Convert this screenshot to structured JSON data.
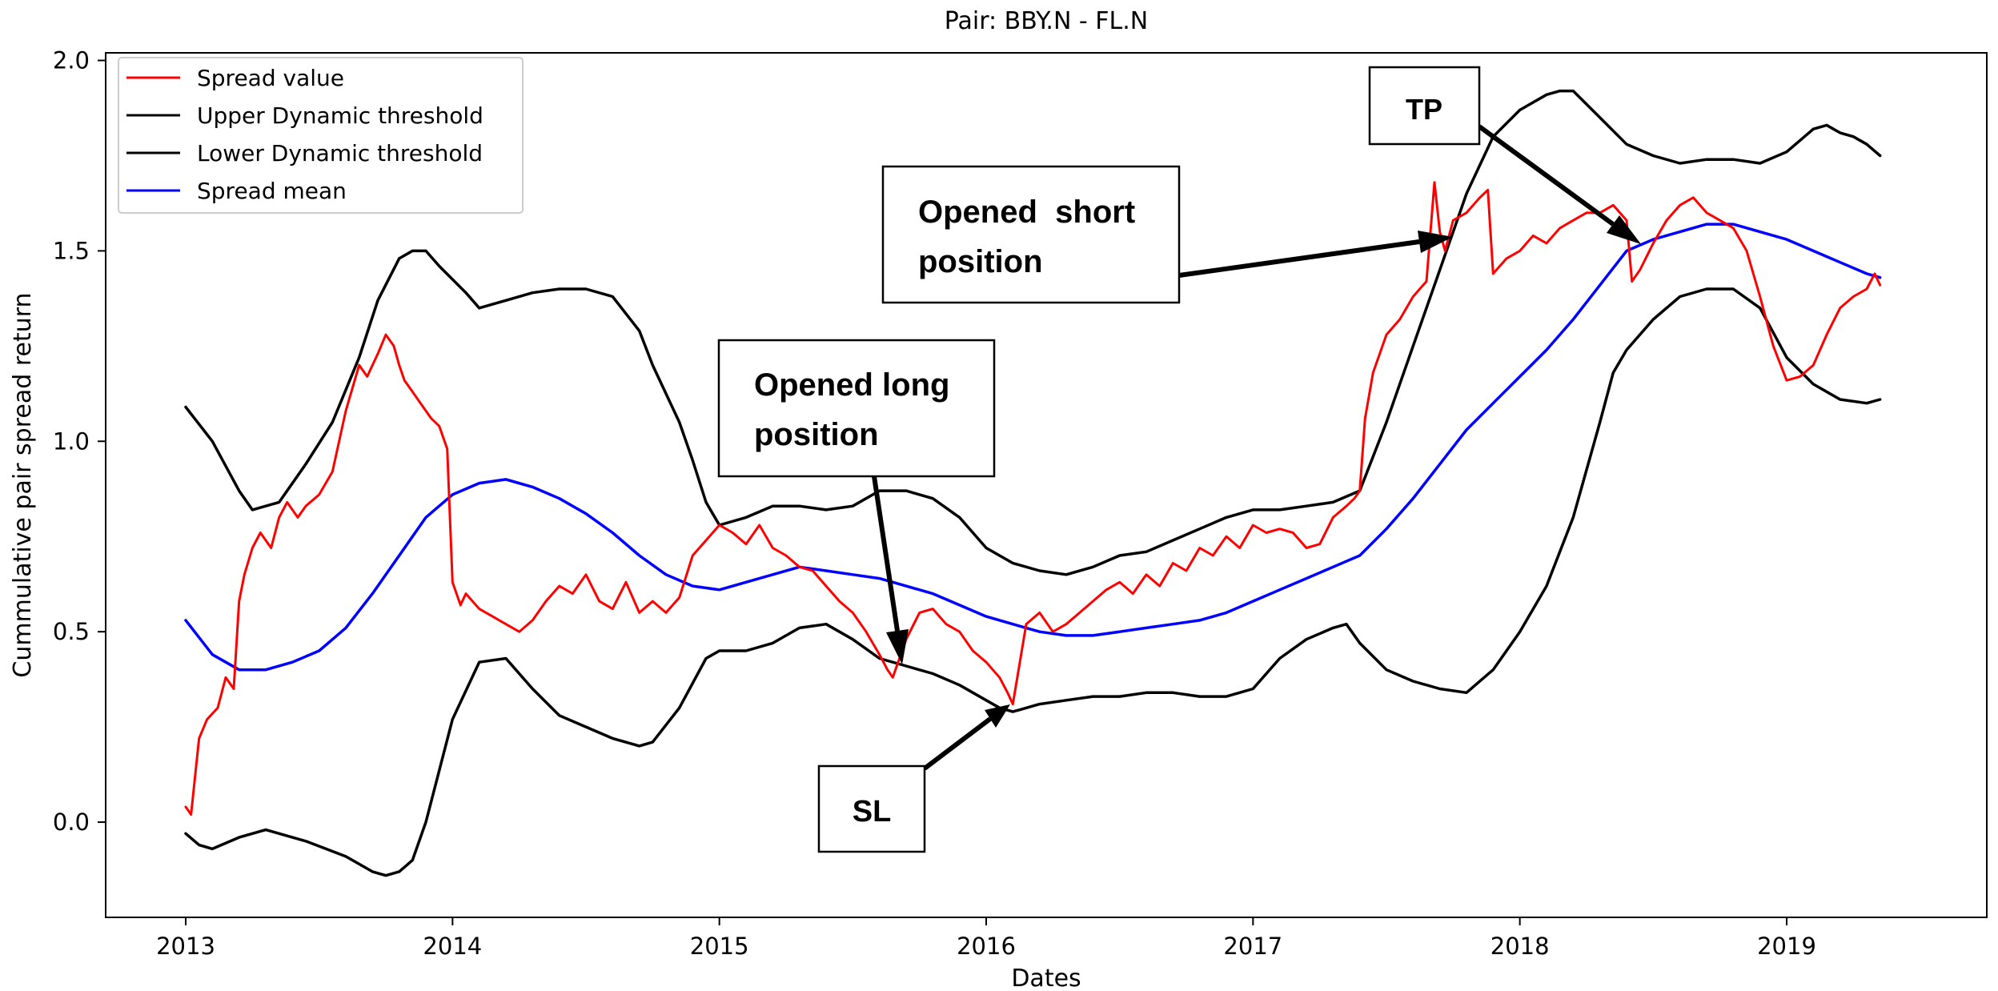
{
  "chart_data": {
    "type": "line",
    "title": "Pair: BBY.N - FL.N",
    "xlabel": "Dates",
    "ylabel": "Cummulative pair spread return",
    "xlim": [
      2012.7,
      2019.75
    ],
    "ylim": [
      -0.25,
      2.02
    ],
    "x_ticks": [
      2013,
      2014,
      2015,
      2016,
      2017,
      2018,
      2019
    ],
    "x_tick_labels": [
      "2013",
      "2014",
      "2015",
      "2016",
      "2017",
      "2018",
      "2019"
    ],
    "y_ticks": [
      0.0,
      0.5,
      1.0,
      1.5,
      2.0
    ],
    "y_tick_labels": [
      "0.0",
      "0.5",
      "1.0",
      "1.5",
      "2.0"
    ],
    "grid": false,
    "legend_position": "top-left",
    "series": [
      {
        "name": "Spread value",
        "color": "#ff0000",
        "x": [
          2013.0,
          2013.02,
          2013.05,
          2013.08,
          2013.12,
          2013.15,
          2013.18,
          2013.2,
          2013.22,
          2013.25,
          2013.28,
          2013.32,
          2013.35,
          2013.38,
          2013.42,
          2013.45,
          2013.5,
          2013.55,
          2013.6,
          2013.65,
          2013.68,
          2013.72,
          2013.75,
          2013.78,
          2013.8,
          2013.82,
          2013.85,
          2013.88,
          2013.92,
          2013.95,
          2013.98,
          2014.0,
          2014.03,
          2014.05,
          2014.1,
          2014.15,
          2014.2,
          2014.25,
          2014.3,
          2014.35,
          2014.4,
          2014.45,
          2014.5,
          2014.55,
          2014.6,
          2014.65,
          2014.7,
          2014.75,
          2014.8,
          2014.85,
          2014.9,
          2014.95,
          2015.0,
          2015.05,
          2015.1,
          2015.15,
          2015.2,
          2015.25,
          2015.3,
          2015.35,
          2015.4,
          2015.45,
          2015.5,
          2015.55,
          2015.6,
          2015.63,
          2015.65,
          2015.7,
          2015.75,
          2015.8,
          2015.85,
          2015.9,
          2015.95,
          2016.0,
          2016.05,
          2016.08,
          2016.1,
          2016.15,
          2016.2,
          2016.25,
          2016.3,
          2016.35,
          2016.4,
          2016.45,
          2016.5,
          2016.55,
          2016.6,
          2016.65,
          2016.7,
          2016.75,
          2016.8,
          2016.85,
          2016.9,
          2016.95,
          2017.0,
          2017.05,
          2017.1,
          2017.15,
          2017.2,
          2017.25,
          2017.3,
          2017.35,
          2017.38,
          2017.4,
          2017.42,
          2017.45,
          2017.5,
          2017.55,
          2017.6,
          2017.65,
          2017.68,
          2017.7,
          2017.72,
          2017.75,
          2017.8,
          2017.85,
          2017.88,
          2017.9,
          2017.95,
          2018.0,
          2018.05,
          2018.1,
          2018.15,
          2018.2,
          2018.25,
          2018.3,
          2018.35,
          2018.4,
          2018.42,
          2018.45,
          2018.5,
          2018.55,
          2018.6,
          2018.65,
          2018.7,
          2018.75,
          2018.8,
          2018.85,
          2018.9,
          2018.95,
          2019.0,
          2019.05,
          2019.1,
          2019.15,
          2019.2,
          2019.25,
          2019.3,
          2019.33,
          2019.35
        ],
        "y": [
          0.04,
          0.02,
          0.22,
          0.27,
          0.3,
          0.38,
          0.35,
          0.58,
          0.65,
          0.72,
          0.76,
          0.72,
          0.8,
          0.84,
          0.8,
          0.83,
          0.86,
          0.92,
          1.08,
          1.2,
          1.17,
          1.23,
          1.28,
          1.25,
          1.2,
          1.16,
          1.13,
          1.1,
          1.06,
          1.04,
          0.98,
          0.63,
          0.57,
          0.6,
          0.56,
          0.54,
          0.52,
          0.5,
          0.53,
          0.58,
          0.62,
          0.6,
          0.65,
          0.58,
          0.56,
          0.63,
          0.55,
          0.58,
          0.55,
          0.59,
          0.7,
          0.74,
          0.78,
          0.76,
          0.73,
          0.78,
          0.72,
          0.7,
          0.67,
          0.66,
          0.62,
          0.58,
          0.55,
          0.5,
          0.44,
          0.4,
          0.38,
          0.48,
          0.55,
          0.56,
          0.52,
          0.5,
          0.45,
          0.42,
          0.38,
          0.34,
          0.31,
          0.52,
          0.55,
          0.5,
          0.52,
          0.55,
          0.58,
          0.61,
          0.63,
          0.6,
          0.65,
          0.62,
          0.68,
          0.66,
          0.72,
          0.7,
          0.75,
          0.72,
          0.78,
          0.76,
          0.77,
          0.76,
          0.72,
          0.73,
          0.8,
          0.83,
          0.85,
          0.87,
          1.06,
          1.18,
          1.28,
          1.32,
          1.38,
          1.42,
          1.68,
          1.55,
          1.5,
          1.58,
          1.6,
          1.64,
          1.66,
          1.44,
          1.48,
          1.5,
          1.54,
          1.52,
          1.56,
          1.58,
          1.6,
          1.6,
          1.62,
          1.58,
          1.42,
          1.45,
          1.52,
          1.58,
          1.62,
          1.64,
          1.6,
          1.58,
          1.56,
          1.5,
          1.38,
          1.25,
          1.16,
          1.17,
          1.2,
          1.28,
          1.35,
          1.38,
          1.4,
          1.44,
          1.41
        ]
      },
      {
        "name": "Upper Dynamic threshold",
        "color": "#000000",
        "x": [
          2013.0,
          2013.1,
          2013.2,
          2013.25,
          2013.35,
          2013.45,
          2013.55,
          2013.65,
          2013.72,
          2013.8,
          2013.85,
          2013.9,
          2013.95,
          2014.05,
          2014.1,
          2014.2,
          2014.3,
          2014.4,
          2014.5,
          2014.6,
          2014.7,
          2014.75,
          2014.85,
          2014.9,
          2014.95,
          2015.0,
          2015.1,
          2015.2,
          2015.3,
          2015.4,
          2015.5,
          2015.6,
          2015.7,
          2015.8,
          2015.9,
          2016.0,
          2016.1,
          2016.2,
          2016.3,
          2016.4,
          2016.5,
          2016.6,
          2016.7,
          2016.8,
          2016.9,
          2017.0,
          2017.1,
          2017.2,
          2017.3,
          2017.4,
          2017.5,
          2017.6,
          2017.7,
          2017.8,
          2017.9,
          2018.0,
          2018.1,
          2018.15,
          2018.2,
          2018.3,
          2018.4,
          2018.5,
          2018.6,
          2018.7,
          2018.8,
          2018.9,
          2019.0,
          2019.05,
          2019.1,
          2019.15,
          2019.2,
          2019.25,
          2019.3,
          2019.35
        ],
        "y": [
          1.09,
          1.0,
          0.87,
          0.82,
          0.84,
          0.94,
          1.05,
          1.22,
          1.37,
          1.48,
          1.5,
          1.5,
          1.46,
          1.39,
          1.35,
          1.37,
          1.39,
          1.4,
          1.4,
          1.38,
          1.29,
          1.2,
          1.05,
          0.95,
          0.84,
          0.78,
          0.8,
          0.83,
          0.83,
          0.82,
          0.83,
          0.87,
          0.87,
          0.85,
          0.8,
          0.72,
          0.68,
          0.66,
          0.65,
          0.67,
          0.7,
          0.71,
          0.74,
          0.77,
          0.8,
          0.82,
          0.82,
          0.83,
          0.84,
          0.87,
          1.05,
          1.25,
          1.45,
          1.65,
          1.8,
          1.87,
          1.91,
          1.92,
          1.92,
          1.85,
          1.78,
          1.75,
          1.73,
          1.74,
          1.74,
          1.73,
          1.76,
          1.79,
          1.82,
          1.83,
          1.81,
          1.8,
          1.78,
          1.75
        ]
      },
      {
        "name": "Lower Dynamic threshold",
        "color": "#000000",
        "x": [
          2013.0,
          2013.05,
          2013.1,
          2013.2,
          2013.3,
          2013.45,
          2013.6,
          2013.7,
          2013.75,
          2013.8,
          2013.85,
          2013.9,
          2014.0,
          2014.1,
          2014.2,
          2014.3,
          2014.4,
          2014.5,
          2014.6,
          2014.7,
          2014.75,
          2014.85,
          2014.95,
          2015.0,
          2015.1,
          2015.2,
          2015.3,
          2015.4,
          2015.5,
          2015.6,
          2015.7,
          2015.8,
          2015.9,
          2016.0,
          2016.05,
          2016.1,
          2016.2,
          2016.3,
          2016.4,
          2016.5,
          2016.6,
          2016.7,
          2016.8,
          2016.9,
          2017.0,
          2017.1,
          2017.2,
          2017.3,
          2017.35,
          2017.4,
          2017.5,
          2017.6,
          2017.7,
          2017.8,
          2017.9,
          2018.0,
          2018.1,
          2018.2,
          2018.3,
          2018.35,
          2018.4,
          2018.5,
          2018.6,
          2018.7,
          2018.8,
          2018.9,
          2019.0,
          2019.1,
          2019.2,
          2019.3,
          2019.35
        ],
        "y": [
          -0.03,
          -0.06,
          -0.07,
          -0.04,
          -0.02,
          -0.05,
          -0.09,
          -0.13,
          -0.14,
          -0.13,
          -0.1,
          0.0,
          0.27,
          0.42,
          0.43,
          0.35,
          0.28,
          0.25,
          0.22,
          0.2,
          0.21,
          0.3,
          0.43,
          0.45,
          0.45,
          0.47,
          0.51,
          0.52,
          0.48,
          0.43,
          0.41,
          0.39,
          0.36,
          0.32,
          0.3,
          0.29,
          0.31,
          0.32,
          0.33,
          0.33,
          0.34,
          0.34,
          0.33,
          0.33,
          0.35,
          0.43,
          0.48,
          0.51,
          0.52,
          0.47,
          0.4,
          0.37,
          0.35,
          0.34,
          0.4,
          0.5,
          0.62,
          0.8,
          1.05,
          1.18,
          1.24,
          1.32,
          1.38,
          1.4,
          1.4,
          1.35,
          1.22,
          1.15,
          1.11,
          1.1,
          1.11
        ]
      },
      {
        "name": "Spread mean",
        "color": "#0000ff",
        "x": [
          2013.0,
          2013.1,
          2013.2,
          2013.3,
          2013.4,
          2013.5,
          2013.6,
          2013.7,
          2013.8,
          2013.9,
          2014.0,
          2014.1,
          2014.2,
          2014.3,
          2014.4,
          2014.5,
          2014.6,
          2014.7,
          2014.8,
          2014.9,
          2015.0,
          2015.1,
          2015.2,
          2015.3,
          2015.4,
          2015.5,
          2015.6,
          2015.7,
          2015.8,
          2015.9,
          2016.0,
          2016.1,
          2016.2,
          2016.3,
          2016.4,
          2016.5,
          2016.6,
          2016.7,
          2016.8,
          2016.9,
          2017.0,
          2017.1,
          2017.2,
          2017.3,
          2017.4,
          2017.5,
          2017.6,
          2017.7,
          2017.8,
          2017.9,
          2018.0,
          2018.1,
          2018.2,
          2018.3,
          2018.4,
          2018.5,
          2018.6,
          2018.7,
          2018.8,
          2018.9,
          2019.0,
          2019.1,
          2019.2,
          2019.3,
          2019.35
        ],
        "y": [
          0.53,
          0.44,
          0.4,
          0.4,
          0.42,
          0.45,
          0.51,
          0.6,
          0.7,
          0.8,
          0.86,
          0.89,
          0.9,
          0.88,
          0.85,
          0.81,
          0.76,
          0.7,
          0.65,
          0.62,
          0.61,
          0.63,
          0.65,
          0.67,
          0.66,
          0.65,
          0.64,
          0.62,
          0.6,
          0.57,
          0.54,
          0.52,
          0.5,
          0.49,
          0.49,
          0.5,
          0.51,
          0.52,
          0.53,
          0.55,
          0.58,
          0.61,
          0.64,
          0.67,
          0.7,
          0.77,
          0.85,
          0.94,
          1.03,
          1.1,
          1.17,
          1.24,
          1.32,
          1.41,
          1.5,
          1.53,
          1.55,
          1.57,
          1.57,
          1.55,
          1.53,
          1.5,
          1.47,
          1.44,
          1.43
        ]
      }
    ],
    "annotations": [
      {
        "label": "TP"
      },
      {
        "label": "Opened short position",
        "lines": [
          "Opened  short",
          "position"
        ]
      },
      {
        "label": "Opened long position",
        "lines": [
          "Opened long",
          "position"
        ]
      },
      {
        "label": "SL"
      }
    ]
  }
}
